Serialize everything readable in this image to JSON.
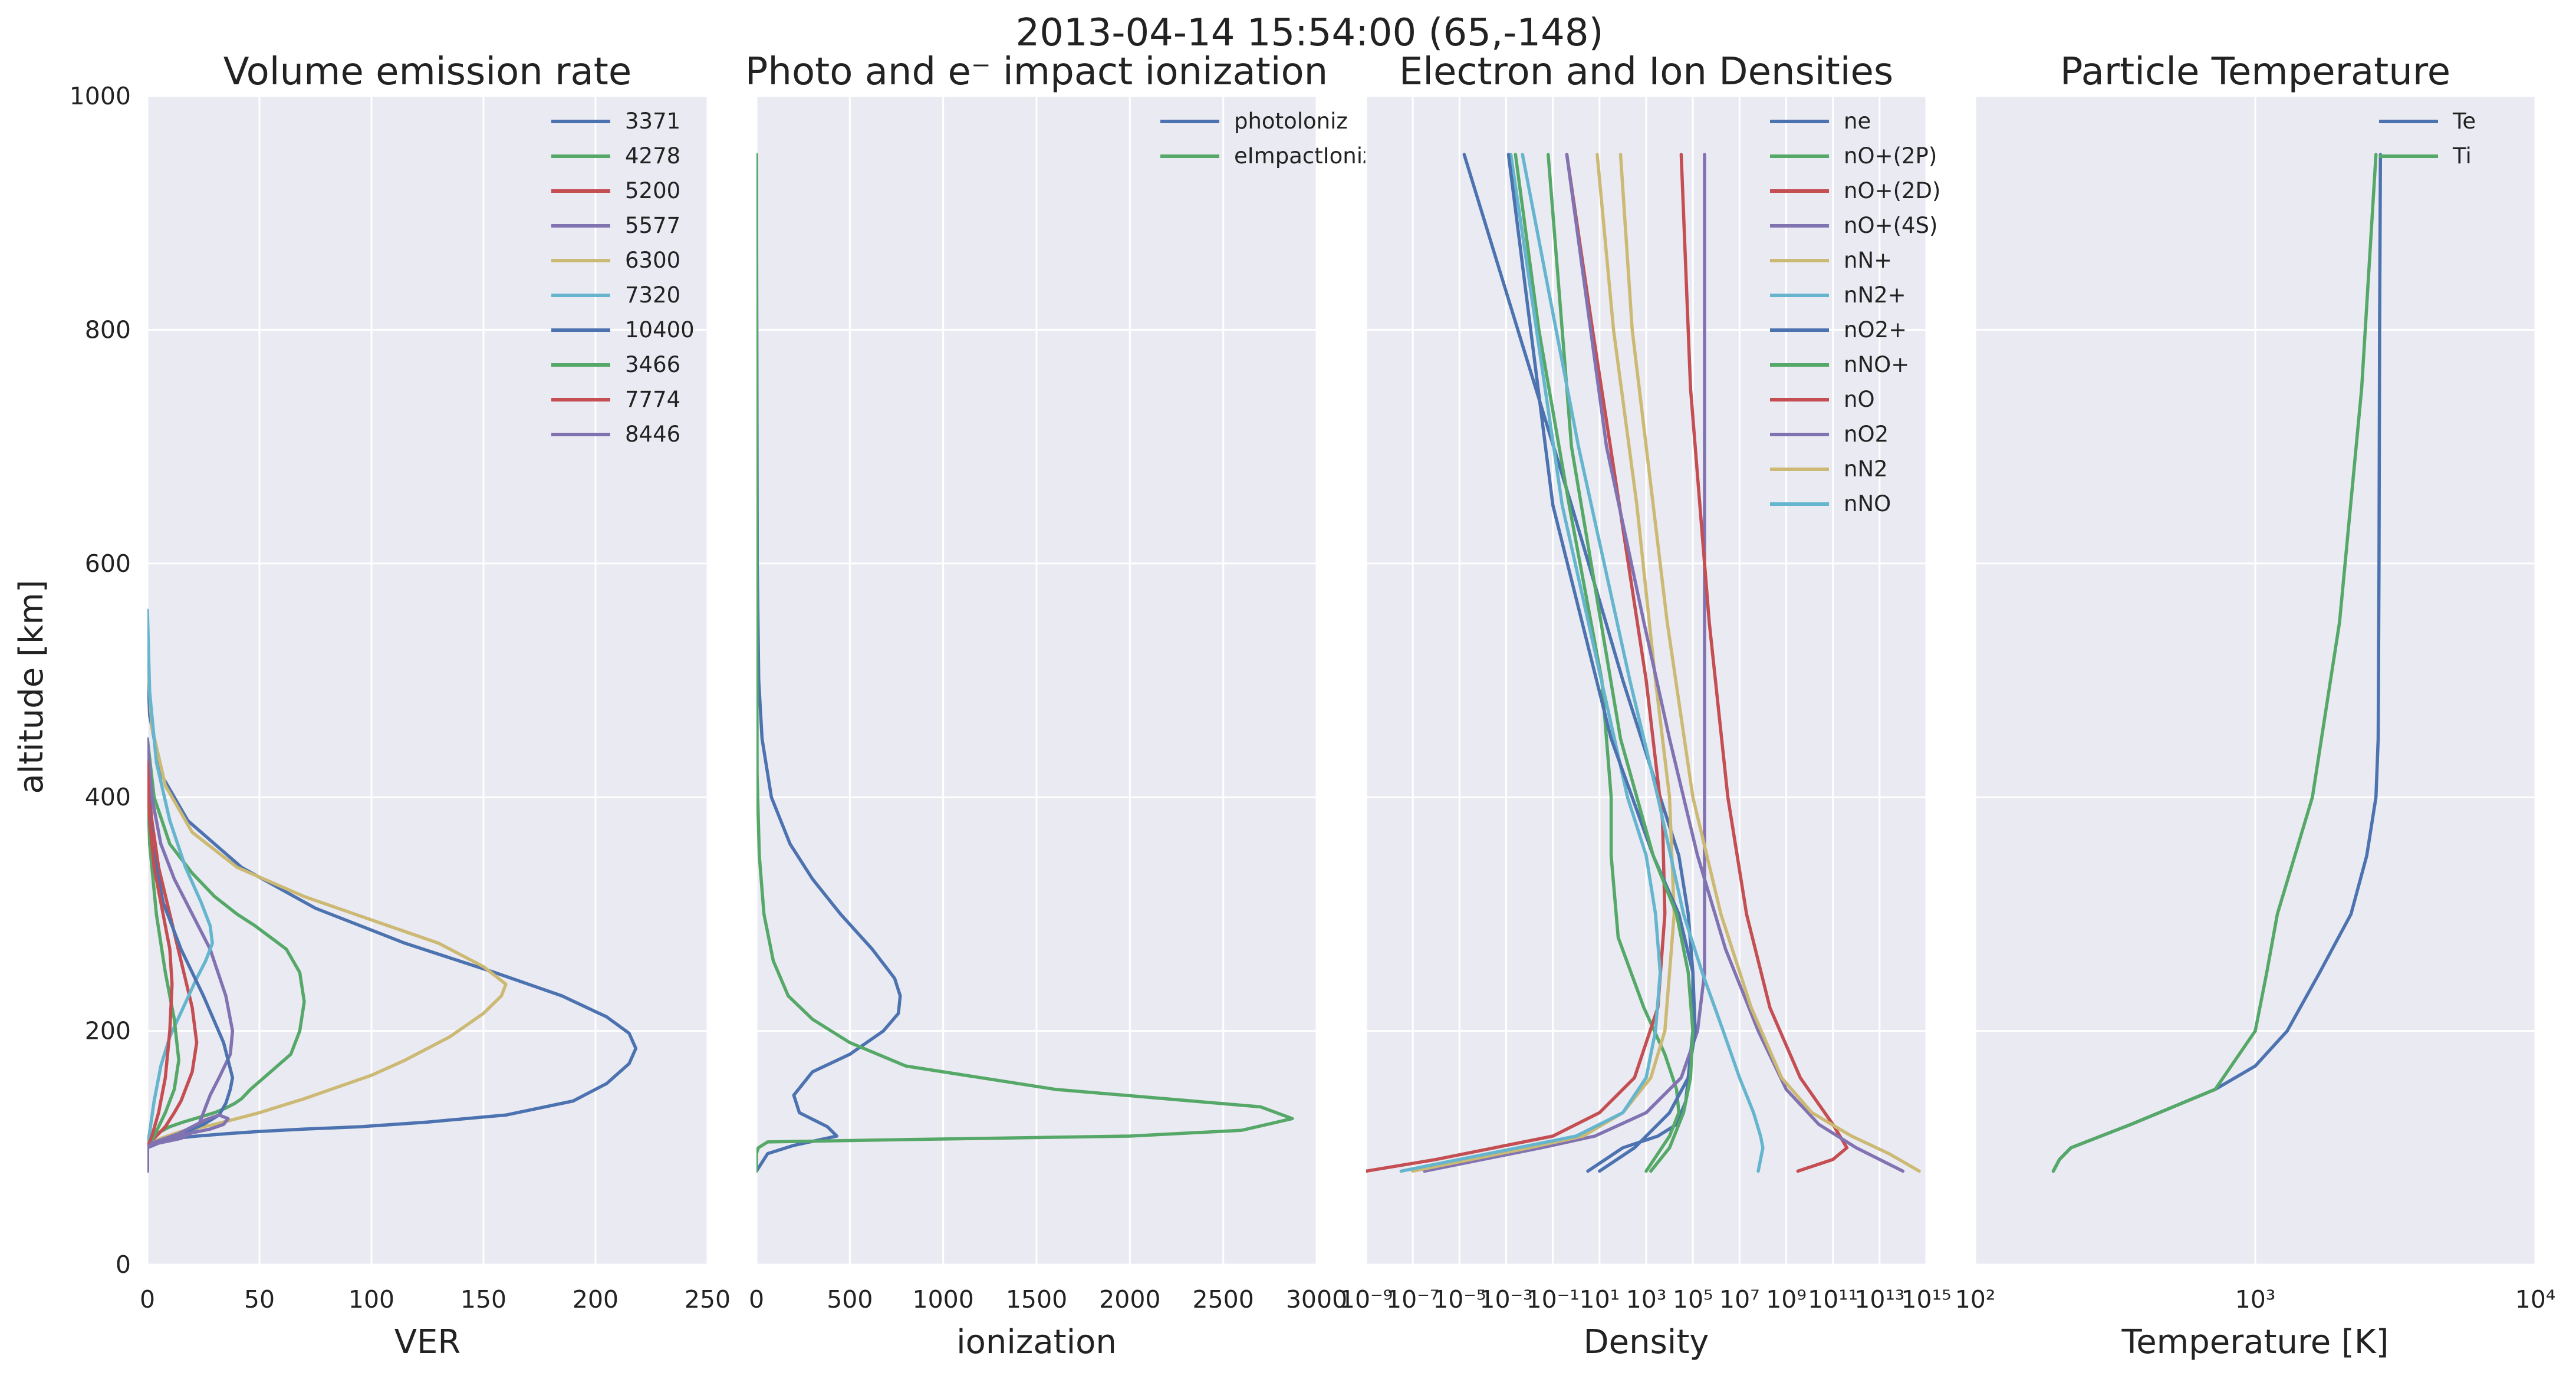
{
  "figure": {
    "suptitle": "2013-04-14 15:54:00 (65,-148)",
    "ylabel": "altitude [km]",
    "colors": {
      "background": "#EAEAF2",
      "grid": "#FFFFFF",
      "blue": "#4C72B0",
      "green": "#55A868",
      "red": "#C44E52",
      "purple": "#8172B2",
      "yellow": "#CCB974",
      "cyan": "#64B5CD"
    }
  },
  "chart_data": [
    {
      "type": "line",
      "title": "Volume emission rate",
      "xlabel": "VER",
      "ylabel": "altitude [km]",
      "xlim": [
        0,
        250
      ],
      "ylim": [
        0,
        1000
      ],
      "xscale": "linear",
      "xticks": [
        0,
        50,
        100,
        150,
        200,
        250
      ],
      "xtick_labels": [
        "0",
        "50",
        "100",
        "150",
        "200",
        "250"
      ],
      "yticks": [
        0,
        200,
        400,
        600,
        800,
        1000
      ],
      "ytick_labels": [
        "0",
        "200",
        "400",
        "600",
        "800",
        "1000"
      ],
      "grid": true,
      "legend_position": "top-right",
      "series": [
        {
          "name": "3371",
          "color": "#4C72B0",
          "x": [
            0,
            0,
            2,
            5,
            12,
            22,
            35,
            50,
            70,
            95,
            125,
            160,
            190,
            205,
            215,
            218,
            215,
            205,
            185,
            155,
            115,
            75,
            42,
            18,
            6,
            1,
            0
          ],
          "y": [
            80,
            100,
            104,
            106,
            108,
            110,
            112,
            114,
            116,
            118,
            122,
            128,
            140,
            155,
            172,
            185,
            198,
            212,
            230,
            250,
            275,
            305,
            340,
            380,
            420,
            470,
            520
          ]
        },
        {
          "name": "4278",
          "color": "#55A868",
          "x": [
            0,
            0,
            1,
            3,
            6,
            10,
            16,
            23,
            30,
            35,
            39,
            42,
            46,
            52,
            58,
            64,
            68,
            70,
            68,
            62,
            55,
            48,
            40,
            30,
            20,
            10,
            3,
            0
          ],
          "y": [
            80,
            100,
            105,
            110,
            114,
            118,
            122,
            126,
            130,
            134,
            138,
            142,
            150,
            160,
            170,
            180,
            200,
            225,
            250,
            270,
            280,
            290,
            300,
            315,
            335,
            360,
            400,
            450
          ]
        },
        {
          "name": "5200",
          "color": "#C44E52",
          "x": [
            0,
            0,
            2,
            5,
            8,
            10,
            12,
            15,
            20,
            22,
            20,
            15,
            10,
            5,
            2,
            0
          ],
          "y": [
            80,
            100,
            106,
            112,
            118,
            124,
            130,
            140,
            165,
            190,
            220,
            260,
            300,
            340,
            380,
            420
          ]
        },
        {
          "name": "5577",
          "color": "#8172B2",
          "x": [
            0,
            0,
            5,
            15,
            22,
            24,
            26,
            28,
            32,
            37,
            38,
            35,
            28,
            20,
            12,
            6,
            2,
            0
          ],
          "y": [
            80,
            100,
            104,
            108,
            115,
            125,
            135,
            145,
            160,
            180,
            200,
            230,
            270,
            300,
            330,
            360,
            400,
            450
          ]
        },
        {
          "name": "6300",
          "color": "#CCB974",
          "x": [
            0,
            0,
            2,
            6,
            15,
            30,
            50,
            70,
            85,
            100,
            115,
            135,
            150,
            158,
            160,
            150,
            130,
            100,
            70,
            40,
            20,
            8,
            2,
            0
          ],
          "y": [
            80,
            100,
            104,
            108,
            114,
            120,
            130,
            142,
            152,
            162,
            175,
            195,
            215,
            230,
            240,
            255,
            275,
            295,
            315,
            340,
            370,
            410,
            460,
            520
          ]
        },
        {
          "name": "7320",
          "color": "#64B5CD",
          "x": [
            0,
            0,
            3,
            6,
            10,
            16,
            22,
            26,
            29,
            28,
            24,
            17,
            10,
            4,
            1,
            0
          ],
          "y": [
            80,
            100,
            140,
            170,
            195,
            220,
            245,
            260,
            275,
            290,
            310,
            340,
            380,
            430,
            490,
            560
          ]
        },
        {
          "name": "10400",
          "color": "#4C72B0",
          "x": [
            0,
            0,
            5,
            15,
            25,
            32,
            35,
            37,
            38,
            34,
            25,
            15,
            7,
            2,
            0
          ],
          "y": [
            80,
            100,
            106,
            112,
            120,
            128,
            138,
            150,
            160,
            190,
            230,
            270,
            310,
            360,
            420
          ]
        },
        {
          "name": "3466",
          "color": "#55A868",
          "x": [
            0,
            0,
            3,
            8,
            12,
            14,
            12,
            8,
            4,
            1,
            0
          ],
          "y": [
            80,
            100,
            110,
            130,
            150,
            175,
            210,
            250,
            300,
            360,
            420
          ]
        },
        {
          "name": "7774",
          "color": "#C44E52",
          "x": [
            0,
            0,
            2,
            5,
            8,
            10,
            11,
            10,
            7,
            3,
            1,
            0
          ],
          "y": [
            80,
            100,
            110,
            130,
            160,
            200,
            240,
            270,
            300,
            340,
            380,
            430
          ]
        },
        {
          "name": "8446",
          "color": "#8172B2",
          "x": [
            0,
            0,
            3,
            8,
            14,
            20,
            26,
            32,
            36,
            34,
            28,
            18,
            8,
            2,
            0
          ],
          "y": [
            80,
            100,
            104,
            108,
            112,
            118,
            124,
            128,
            125,
            120,
            116,
            112,
            108,
            104,
            100
          ]
        }
      ]
    },
    {
      "type": "line",
      "title": "Photo and e⁻   impact ionization",
      "xlabel": "ionization",
      "xlim": [
        0,
        3000
      ],
      "ylim": [
        0,
        1000
      ],
      "xscale": "linear",
      "xticks": [
        0,
        500,
        1000,
        1500,
        2000,
        2500,
        3000
      ],
      "xtick_labels": [
        "0",
        "500",
        "1000",
        "1500",
        "2000",
        "2500",
        "3000"
      ],
      "yticks": [
        0,
        200,
        400,
        600,
        800,
        1000
      ],
      "grid": true,
      "legend_position": "top-right",
      "series": [
        {
          "name": "photoloniz",
          "color": "#4C72B0",
          "x": [
            0,
            20,
            60,
            200,
            430,
            380,
            230,
            200,
            300,
            500,
            680,
            760,
            770,
            740,
            620,
            450,
            300,
            180,
            80,
            30,
            12,
            4,
            0
          ],
          "y": [
            80,
            85,
            95,
            102,
            110,
            118,
            130,
            145,
            165,
            180,
            200,
            215,
            230,
            245,
            270,
            300,
            330,
            360,
            400,
            450,
            500,
            600,
            950
          ]
        },
        {
          "name": "eImpactIoniz",
          "color": "#55A868",
          "x": [
            0,
            0,
            10,
            60,
            800,
            2000,
            2600,
            2870,
            2700,
            1600,
            800,
            500,
            300,
            170,
            90,
            40,
            15,
            3,
            0
          ],
          "y": [
            80,
            95,
            100,
            105,
            107,
            110,
            115,
            125,
            135,
            150,
            170,
            190,
            210,
            230,
            260,
            300,
            350,
            420,
            950
          ]
        }
      ]
    },
    {
      "type": "line",
      "title": "Electron and Ion Densities",
      "xlabel": "Density",
      "xlim": [
        -9,
        15
      ],
      "ylim": [
        0,
        1000
      ],
      "xscale": "log",
      "x_units": "log10 of density",
      "xticks": [
        -9,
        -7,
        -5,
        -3,
        -1,
        1,
        3,
        5,
        7,
        9,
        11,
        13,
        15
      ],
      "xtick_labels": [
        "10⁻⁹",
        "10⁻⁷",
        "10⁻⁵",
        "10⁻³",
        "10⁻¹",
        "10¹",
        "10³",
        "10⁵",
        "10⁷",
        "10⁹",
        "10¹¹",
        "10¹³",
        "10¹⁵"
      ],
      "yticks": [
        0,
        200,
        400,
        600,
        800,
        1000
      ],
      "grid": true,
      "legend_position": "top-right",
      "series": [
        {
          "name": "ne",
          "color": "#4C72B0",
          "x": [
            0.5,
            2,
            3.5,
            4.3,
            4.7,
            5,
            5,
            4.8,
            4.4,
            3.6,
            2,
            -0.2,
            -2.5,
            -4.8
          ],
          "y": [
            80,
            100,
            110,
            120,
            140,
            200,
            250,
            300,
            350,
            400,
            500,
            650,
            800,
            950
          ]
        },
        {
          "name": "nO+(2P)",
          "color": "#55A868",
          "x": [
            3,
            4,
            4.4,
            4.3,
            3.8,
            2.9,
            1.8,
            1.5,
            1.5,
            1.1,
            -0.3,
            -1.6,
            -2.6
          ],
          "y": [
            80,
            110,
            130,
            150,
            180,
            220,
            280,
            350,
            400,
            500,
            650,
            800,
            950
          ]
        },
        {
          "name": "nO+(2D)",
          "color": "#C44E52",
          "x": [
            -9,
            -6,
            -3.5,
            -1,
            1,
            2.5,
            3.5,
            3.8,
            3.7,
            3,
            0.7,
            -0.4
          ],
          "y": [
            80,
            90,
            100,
            110,
            130,
            160,
            220,
            300,
            380,
            500,
            800,
            950
          ]
        },
        {
          "name": "nO+(4S)",
          "color": "#8172B2",
          "x": [
            -6.5,
            -4,
            -1.5,
            0.8,
            3,
            4.5,
            5.2,
            5.5,
            5.5,
            5.5,
            5.5
          ],
          "y": [
            80,
            90,
            100,
            110,
            130,
            160,
            200,
            250,
            500,
            800,
            950
          ]
        },
        {
          "name": "nN+",
          "color": "#CCB974",
          "x": [
            -7,
            -4.5,
            -2,
            0.3,
            2,
            3.2,
            3.8,
            4.2,
            4,
            3.4,
            2.6,
            1.6,
            0.9
          ],
          "y": [
            80,
            90,
            100,
            110,
            130,
            160,
            200,
            300,
            400,
            500,
            650,
            800,
            950
          ]
        },
        {
          "name": "nN2+",
          "color": "#64B5CD",
          "x": [
            -7.5,
            -5,
            -2.5,
            0,
            2,
            3,
            3.4,
            3.6,
            3.4,
            3,
            2.2,
            -0.6,
            -2.8
          ],
          "y": [
            80,
            90,
            100,
            110,
            130,
            160,
            200,
            250,
            300,
            350,
            400,
            650,
            950
          ]
        },
        {
          "name": "nO2+",
          "color": "#4C72B0",
          "x": [
            1,
            2.5,
            4,
            4.8,
            5.1,
            5,
            4.4,
            3.3,
            1.5,
            -1,
            -2.9
          ],
          "y": [
            80,
            100,
            130,
            160,
            200,
            250,
            300,
            350,
            450,
            650,
            950
          ]
        },
        {
          "name": "nNO+",
          "color": "#55A868",
          "x": [
            3.2,
            4,
            4.6,
            4.9,
            5,
            4.8,
            4.3,
            3.3,
            1.9,
            -0.2,
            -1.2
          ],
          "y": [
            80,
            100,
            130,
            160,
            200,
            250,
            300,
            350,
            450,
            700,
            950
          ]
        },
        {
          "name": "nO",
          "color": "#C44E52",
          "x": [
            9.5,
            11,
            11.6,
            11,
            9.6,
            8.3,
            7.3,
            6.5,
            5.7,
            4.9,
            4.5
          ],
          "y": [
            80,
            90,
            100,
            120,
            160,
            220,
            300,
            400,
            550,
            750,
            950
          ]
        },
        {
          "name": "nO2",
          "color": "#8172B2",
          "x": [
            14,
            12,
            10.4,
            9,
            7.8,
            6.4,
            5.2,
            4,
            2.9,
            1.3,
            -0.4
          ],
          "y": [
            80,
            100,
            120,
            150,
            200,
            270,
            350,
            450,
            550,
            700,
            950
          ]
        },
        {
          "name": "nN2",
          "color": "#CCB974",
          "x": [
            14.7,
            13.4,
            11.8,
            10.1,
            8.8,
            7.5,
            6.2,
            5,
            3.9,
            2.4,
            1.9
          ],
          "y": [
            80,
            95,
            110,
            130,
            160,
            220,
            300,
            400,
            550,
            800,
            950
          ]
        },
        {
          "name": "nNO",
          "color": "#64B5CD",
          "x": [
            7.8,
            8,
            7.9,
            7.6,
            7,
            6.3,
            5.4,
            4.6,
            3.5,
            2.3,
            0.1,
            -2.3
          ],
          "y": [
            80,
            100,
            110,
            130,
            160,
            200,
            250,
            300,
            400,
            500,
            700,
            950
          ]
        }
      ]
    },
    {
      "type": "line",
      "title": "Particle Temperature",
      "xlabel": "Temperature [K]",
      "xlim": [
        2,
        4
      ],
      "ylim": [
        0,
        1000
      ],
      "xscale": "log",
      "x_units": "log10 of temperature in K",
      "xticks": [
        2,
        3,
        4
      ],
      "xtick_labels": [
        "10²",
        "10³",
        "10⁴"
      ],
      "yticks": [
        0,
        200,
        400,
        600,
        800,
        1000
      ],
      "grid": true,
      "legend_position": "top-right",
      "series": [
        {
          "name": "Te",
          "color": "#4C72B0",
          "x": [
            2.279,
            2.301,
            2.342,
            2.556,
            2.857,
            3,
            3.114,
            3.23,
            3.342,
            3.398,
            3.431,
            3.439,
            3.442,
            3.444,
            3.447
          ],
          "y": [
            80,
            90,
            100,
            120,
            150,
            170,
            200,
            250,
            300,
            350,
            400,
            450,
            600,
            800,
            950
          ]
        },
        {
          "name": "Ti",
          "color": "#55A868",
          "x": [
            2.279,
            2.301,
            2.342,
            2.556,
            2.857,
            3,
            3.041,
            3.079,
            3.204,
            3.301,
            3.38,
            3.431
          ],
          "y": [
            80,
            90,
            100,
            120,
            150,
            200,
            250,
            300,
            400,
            550,
            750,
            950
          ]
        }
      ]
    }
  ]
}
